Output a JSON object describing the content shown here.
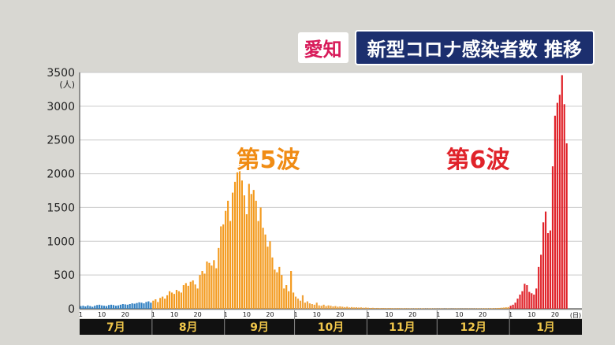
{
  "title": {
    "prefecture": "愛知",
    "main": "新型コロナ感染者数 推移"
  },
  "chart_data": {
    "type": "bar",
    "ylabel": "(人)",
    "xunit": "(日)",
    "ylim": [
      0,
      3500
    ],
    "yticks": [
      0,
      500,
      1000,
      1500,
      2000,
      2500,
      3000,
      3500
    ],
    "grid": true,
    "months": [
      {
        "label": "7月",
        "days": 31,
        "ticks": [
          "1",
          "10",
          "20"
        ]
      },
      {
        "label": "8月",
        "days": 31,
        "ticks": [
          "1",
          "10",
          "20"
        ]
      },
      {
        "label": "9月",
        "days": 30,
        "ticks": [
          "1",
          "10",
          "20"
        ]
      },
      {
        "label": "10月",
        "days": 31,
        "ticks": [
          "1",
          "10",
          "20"
        ]
      },
      {
        "label": "11月",
        "days": 30,
        "ticks": [
          "1",
          "10",
          "20"
        ]
      },
      {
        "label": "12月",
        "days": 31,
        "ticks": [
          "1",
          "10",
          "20"
        ]
      },
      {
        "label": "1月",
        "days": 31,
        "ticks": [
          "1",
          "10",
          "20"
        ]
      }
    ],
    "colors": {
      "jul": "#2f7fc1",
      "wave5": "#f39a1e",
      "between": "#f0a23a",
      "wave6": "#e0232a"
    },
    "annotations": [
      {
        "text": "第5波",
        "color": "#f08c14"
      },
      {
        "text": "第6波",
        "color": "#e0232a"
      }
    ],
    "series": [
      {
        "color_key": "jul",
        "values": [
          40,
          45,
          35,
          50,
          40,
          30,
          45,
          55,
          60,
          50,
          45,
          40,
          55,
          60,
          55,
          45,
          50,
          60,
          70,
          65,
          60,
          70,
          80,
          75,
          85,
          95,
          90,
          80,
          100,
          110,
          90
        ]
      },
      {
        "color_key": "wave5",
        "values": [
          120,
          140,
          100,
          160,
          180,
          150,
          200,
          260,
          240,
          220,
          280,
          260,
          240,
          350,
          380,
          340,
          400,
          420,
          360,
          300,
          500,
          560,
          520,
          700,
          680,
          640,
          720,
          600,
          900,
          1220,
          1250
        ]
      },
      {
        "color_key": "wave5",
        "values": [
          1450,
          1600,
          1300,
          1720,
          1880,
          2020,
          2320,
          1900,
          1680,
          1400,
          1850,
          1700,
          1760,
          1600,
          1300,
          1500,
          1200,
          1100,
          920,
          1000,
          760,
          580,
          540,
          620,
          500,
          300,
          350,
          260,
          560,
          240
        ]
      },
      {
        "color_key": "between",
        "values": [
          180,
          150,
          120,
          200,
          90,
          110,
          80,
          70,
          60,
          90,
          50,
          45,
          60,
          40,
          50,
          45,
          35,
          40,
          30,
          35,
          30,
          25,
          30,
          20,
          25,
          20,
          22,
          18,
          20,
          15,
          18
        ]
      },
      {
        "color_key": "between",
        "values": [
          15,
          12,
          14,
          10,
          12,
          9,
          11,
          10,
          8,
          10,
          9,
          7,
          8,
          9,
          7,
          6,
          8,
          7,
          6,
          5,
          6,
          7,
          5,
          6,
          5,
          4,
          5,
          6,
          5,
          4
        ]
      },
      {
        "color_key": "between",
        "values": [
          4,
          5,
          4,
          3,
          5,
          4,
          3,
          4,
          5,
          4,
          3,
          4,
          3,
          5,
          4,
          4,
          5,
          6,
          5,
          6,
          7,
          6,
          8,
          7,
          9,
          10,
          12,
          15,
          18,
          22,
          25
        ]
      },
      {
        "color_key": "wave6",
        "values": [
          45,
          60,
          90,
          150,
          210,
          260,
          370,
          350,
          250,
          230,
          210,
          300,
          620,
          800,
          1280,
          1440,
          1120,
          1160,
          2110,
          2860,
          3050,
          3170,
          3460,
          3030,
          2450,
          0,
          0,
          0,
          0,
          0,
          0
        ]
      }
    ]
  }
}
